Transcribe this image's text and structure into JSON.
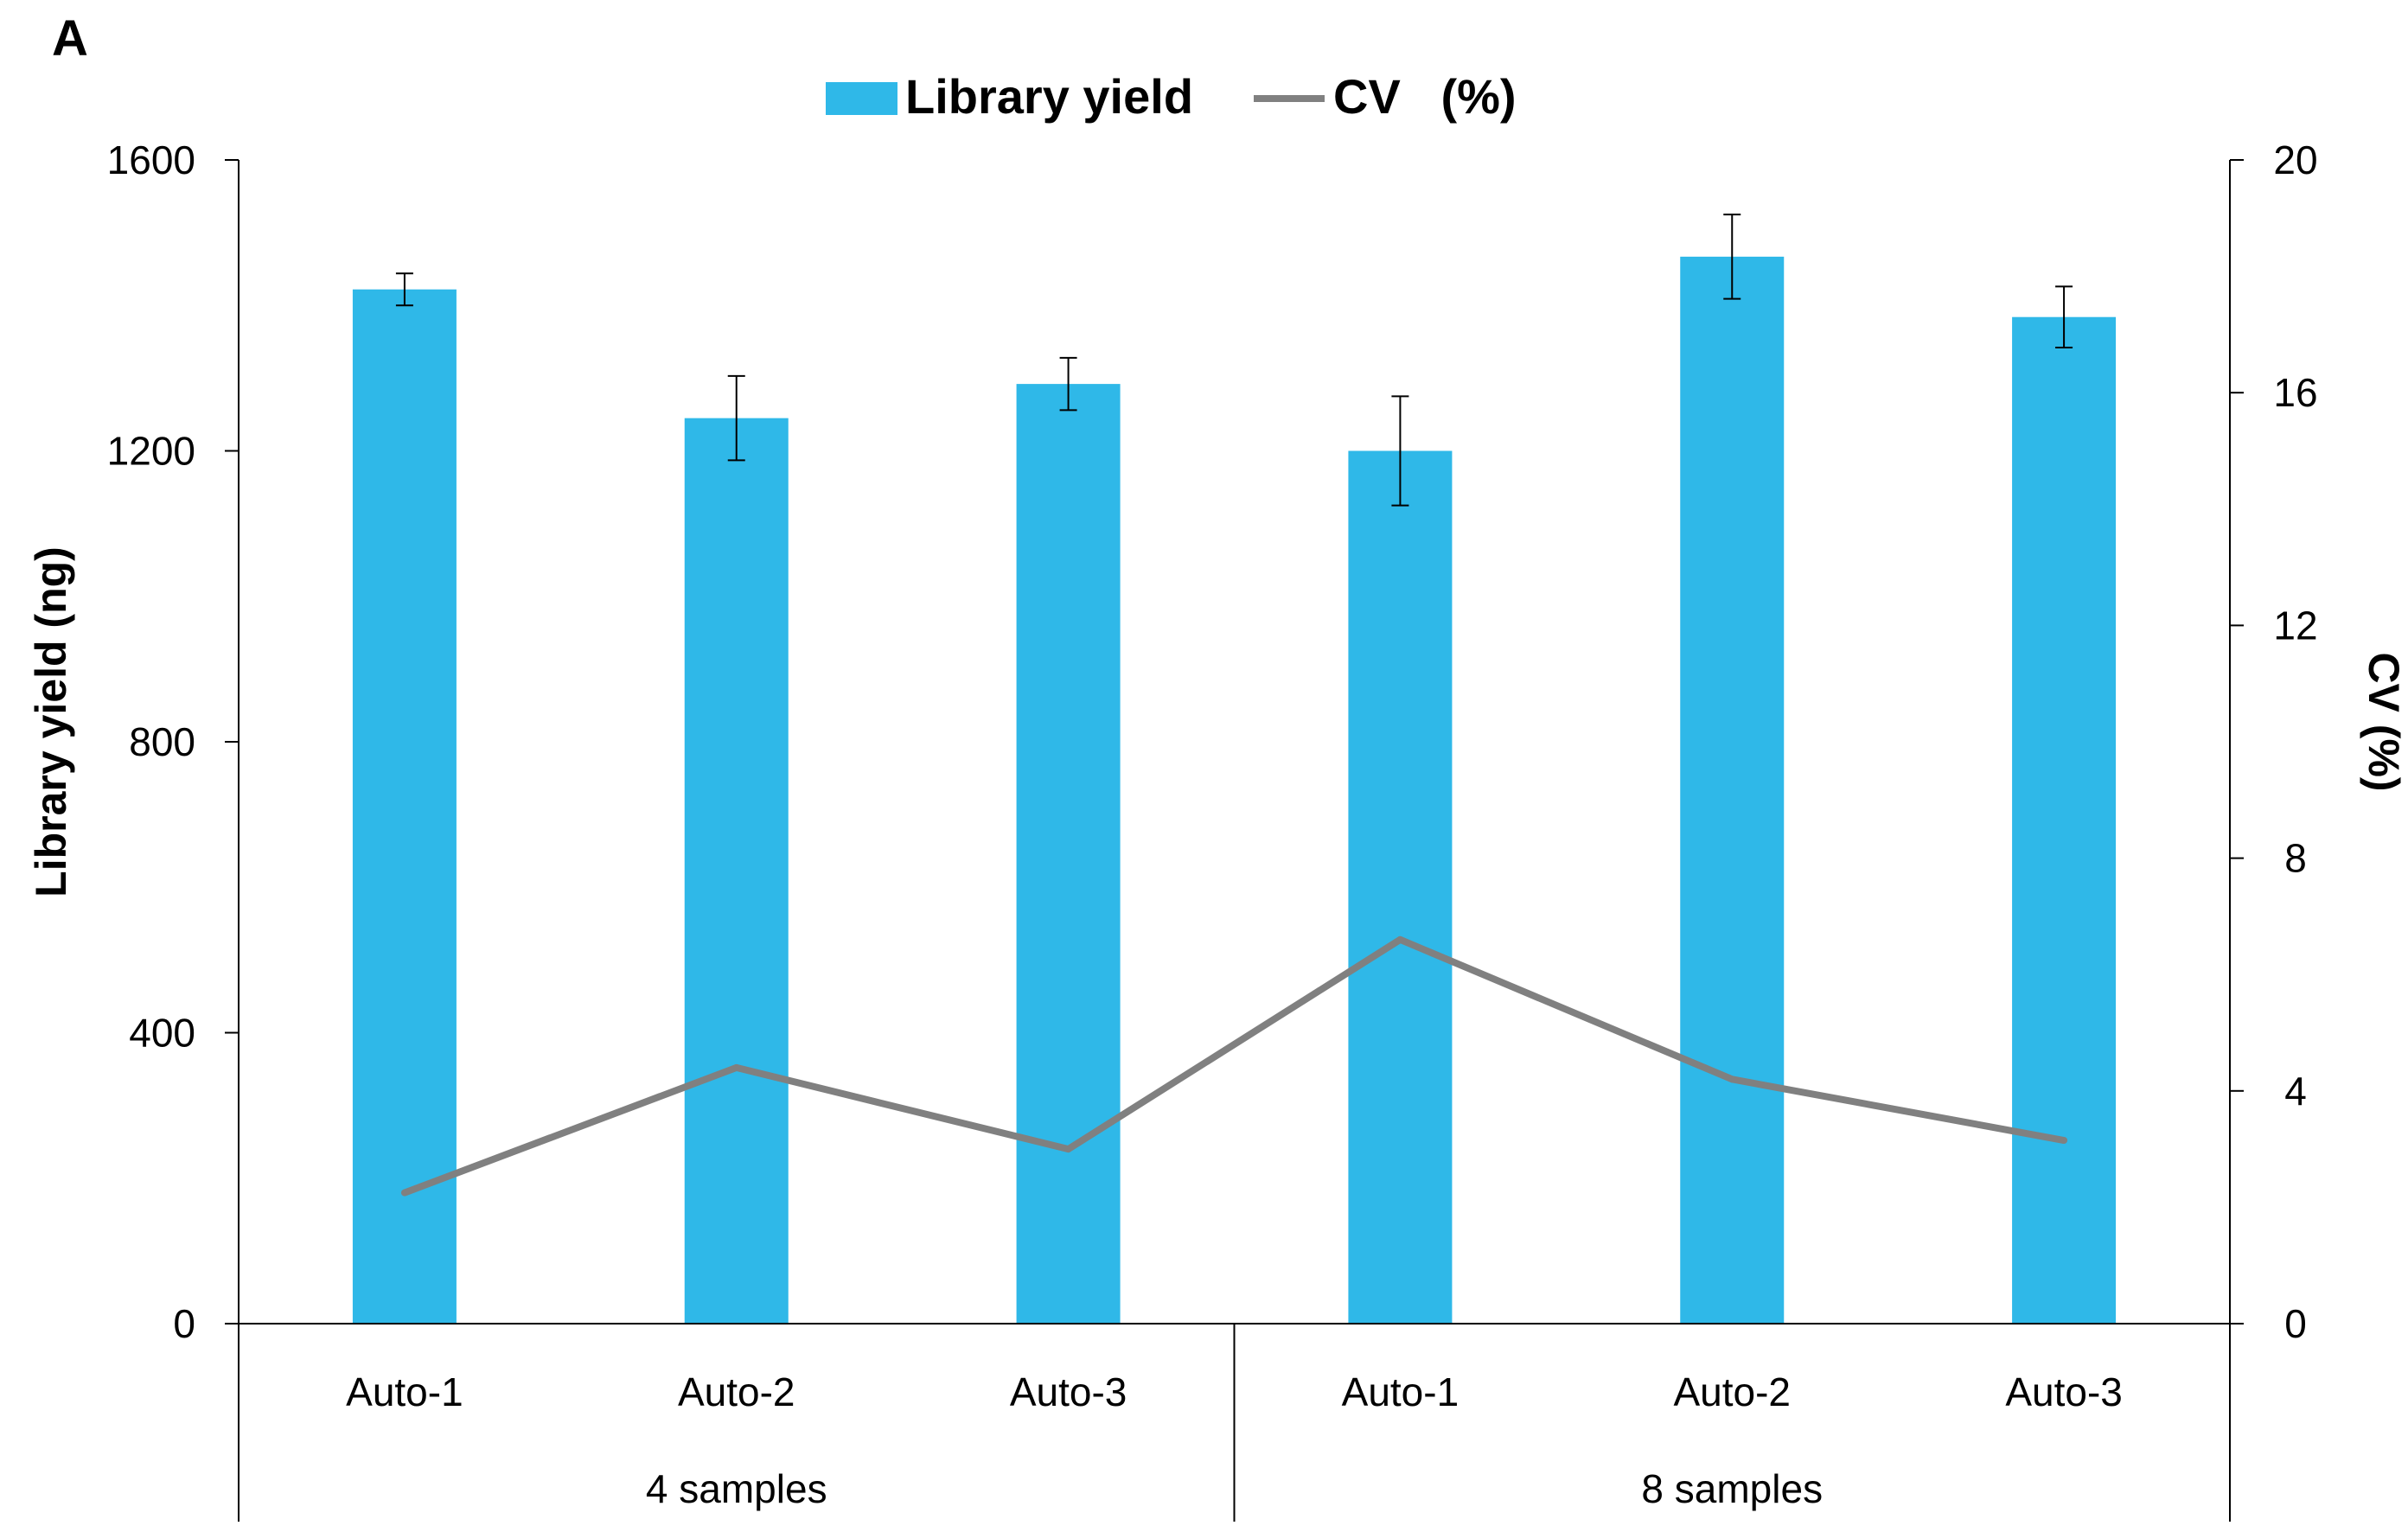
{
  "panel_label": "A",
  "chart_data": {
    "type": "bar",
    "title": "",
    "groups": [
      {
        "label": "4 samples",
        "categories": [
          "Auto-1",
          "Auto-2",
          "Auto-3"
        ]
      },
      {
        "label": "8 samples",
        "categories": [
          "Auto-1",
          "Auto-2",
          "Auto-3"
        ]
      }
    ],
    "categories": [
      "Auto-1",
      "Auto-2",
      "Auto-3",
      "Auto-1",
      "Auto-2",
      "Auto-3"
    ],
    "series": [
      {
        "name": "Library yield",
        "type": "bar",
        "axis": "left",
        "color": "#2fb8e8",
        "values": [
          1422,
          1245,
          1292,
          1200,
          1467,
          1384
        ],
        "error": [
          22,
          58,
          36,
          75,
          58,
          42
        ]
      },
      {
        "name": "CV   (%)",
        "type": "line",
        "axis": "right",
        "color": "#808080",
        "values": [
          2.25,
          4.4,
          3.0,
          6.6,
          4.2,
          3.15
        ]
      }
    ],
    "ylabel": "Library yield (ng)",
    "ylim": [
      0,
      1600
    ],
    "yticks": [
      0,
      400,
      800,
      1200,
      1600
    ],
    "y2label": "CV (%)",
    "y2lim": [
      0,
      20
    ],
    "y2ticks": [
      0,
      4,
      8,
      12,
      16,
      20
    ],
    "legend": "top-center",
    "grid": false
  }
}
